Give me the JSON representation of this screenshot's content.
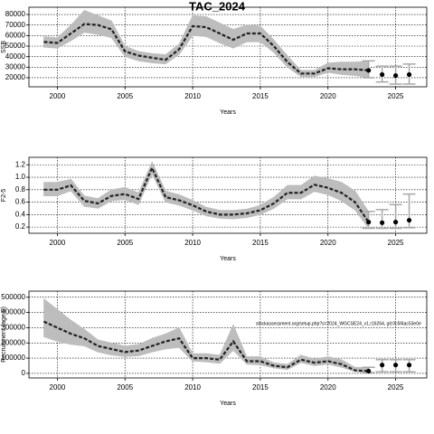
{
  "chart_data": [
    {
      "type": "line",
      "title": "TAC_2024",
      "xlabel": "Years",
      "ylabel": "SSB",
      "x": [
        1999,
        2000,
        2001,
        2002,
        2003,
        2004,
        2005,
        2006,
        2007,
        2008,
        2009,
        2010,
        2011,
        2012,
        2013,
        2014,
        2015,
        2016,
        2017,
        2018,
        2019,
        2020,
        2021,
        2022,
        2023
      ],
      "values": [
        54000,
        53000,
        62000,
        71000,
        70000,
        66000,
        45000,
        41000,
        39000,
        37000,
        47000,
        69000,
        68000,
        62000,
        56000,
        62000,
        62000,
        50000,
        35000,
        24000,
        24000,
        29000,
        28000,
        28000,
        27000
      ],
      "upper": [
        59000,
        58000,
        70000,
        84000,
        79000,
        74000,
        50000,
        45000,
        43000,
        42000,
        52000,
        79000,
        78000,
        72000,
        66000,
        70000,
        69000,
        56000,
        41000,
        27000,
        27000,
        34000,
        35000,
        35000,
        36000
      ],
      "lower": [
        49000,
        48000,
        55000,
        63000,
        61000,
        58000,
        40000,
        36000,
        34000,
        33000,
        42000,
        60000,
        59000,
        53000,
        48000,
        54000,
        54000,
        44000,
        30000,
        21000,
        21000,
        25000,
        23000,
        22000,
        20000
      ],
      "proj_x": [
        2023,
        2024,
        2025,
        2026
      ],
      "proj_values": [
        27000,
        23000,
        22000,
        23000
      ],
      "proj_lower": [
        20000,
        16000,
        14000,
        14000
      ],
      "proj_upper": [
        36000,
        31000,
        31000,
        33000
      ],
      "xlim": [
        1997.9,
        2027.3
      ],
      "xticks": [
        2000,
        2005,
        2010,
        2015,
        2020,
        2025
      ],
      "ylim": [
        11400,
        86900
      ],
      "yticks": [
        20000,
        30000,
        40000,
        50000,
        60000,
        70000,
        80000
      ],
      "grid": true,
      "band_color": "#bdbdbd",
      "line_color": "#222222",
      "bar_color": "#a8a8a8"
    },
    {
      "type": "line",
      "xlabel": "Years",
      "ylabel": "F2-5",
      "x": [
        1999,
        2000,
        2001,
        2002,
        2003,
        2004,
        2005,
        2006,
        2007,
        2008,
        2009,
        2010,
        2011,
        2012,
        2013,
        2014,
        2015,
        2016,
        2017,
        2018,
        2019,
        2020,
        2021,
        2022,
        2023
      ],
      "values": [
        0.8,
        0.8,
        0.87,
        0.62,
        0.58,
        0.7,
        0.73,
        0.65,
        1.15,
        0.68,
        0.63,
        0.55,
        0.45,
        0.4,
        0.4,
        0.42,
        0.47,
        0.58,
        0.75,
        0.75,
        0.88,
        0.83,
        0.75,
        0.6,
        0.28
      ],
      "upper": [
        0.92,
        0.92,
        0.97,
        0.7,
        0.66,
        0.8,
        0.84,
        0.75,
        1.25,
        0.78,
        0.72,
        0.63,
        0.52,
        0.47,
        0.47,
        0.49,
        0.55,
        0.68,
        0.87,
        0.87,
        1.02,
        0.98,
        0.92,
        0.78,
        0.45
      ],
      "lower": [
        0.7,
        0.7,
        0.78,
        0.53,
        0.5,
        0.62,
        0.64,
        0.56,
        1.05,
        0.6,
        0.55,
        0.47,
        0.38,
        0.34,
        0.33,
        0.35,
        0.4,
        0.5,
        0.65,
        0.65,
        0.77,
        0.72,
        0.62,
        0.47,
        0.18
      ],
      "proj_x": [
        2023,
        2024,
        2025,
        2026
      ],
      "proj_values": [
        0.28,
        0.27,
        0.28,
        0.31
      ],
      "proj_lower": [
        0.18,
        0.18,
        0.18,
        0.19
      ],
      "proj_upper": [
        0.45,
        0.48,
        0.56,
        0.73
      ],
      "xlim": [
        1997.9,
        2027.3
      ],
      "xticks": [
        2000,
        2005,
        2010,
        2015,
        2020,
        2025
      ],
      "ylim": [
        0.1,
        1.32
      ],
      "yticks": [
        0.2,
        0.4,
        0.6,
        0.8,
        {
          "value": 1,
          "label": "1.0"
        },
        1.2
      ],
      "grid": true,
      "band_color": "#bdbdbd",
      "line_color": "#222222",
      "bar_color": "#a8a8a8"
    },
    {
      "type": "line",
      "xlabel": "Years",
      "ylabel": "Recruitment (age 0)",
      "annotation": "stockassessment.org/setup.php?s=2024_WGCSE24_v1,r16264, git:0c5f4ac53e0e",
      "x": [
        1999,
        2000,
        2001,
        2002,
        2003,
        2004,
        2005,
        2006,
        2007,
        2008,
        2009,
        2010,
        2011,
        2012,
        2013,
        2014,
        2015,
        2016,
        2017,
        2018,
        2019,
        2020,
        2021,
        2022,
        2023
      ],
      "values": [
        340000,
        300000,
        260000,
        230000,
        180000,
        160000,
        140000,
        150000,
        180000,
        210000,
        230000,
        100000,
        100000,
        90000,
        210000,
        80000,
        80000,
        50000,
        40000,
        90000,
        70000,
        80000,
        60000,
        20000,
        15000
      ],
      "upper": [
        490000,
        420000,
        350000,
        290000,
        220000,
        200000,
        180000,
        190000,
        230000,
        260000,
        300000,
        130000,
        130000,
        120000,
        320000,
        110000,
        110000,
        70000,
        60000,
        120000,
        95000,
        110000,
        90000,
        40000,
        40000
      ],
      "lower": [
        240000,
        210000,
        190000,
        180000,
        140000,
        120000,
        110000,
        115000,
        140000,
        160000,
        170000,
        80000,
        75000,
        65000,
        150000,
        60000,
        55000,
        35000,
        25000,
        70000,
        50000,
        60000,
        40000,
        10000,
        5000
      ],
      "proj_x": [
        2023,
        2024,
        2025,
        2026
      ],
      "proj_values": [
        15000,
        55000,
        55000,
        55000
      ],
      "proj_lower": [
        5000,
        10000,
        10000,
        10000
      ],
      "proj_upper": [
        40000,
        90000,
        90000,
        90000
      ],
      "xlim": [
        1997.9,
        2027.3
      ],
      "xticks": [
        2000,
        2005,
        2010,
        2015,
        2020,
        2025
      ],
      "ylim": [
        -30000,
        540000
      ],
      "yticks": [
        0,
        100000,
        200000,
        300000,
        400000,
        500000
      ],
      "grid": true,
      "band_color": "#bdbdbd",
      "line_color": "#222222",
      "bar_color": "#a8a8a8"
    }
  ]
}
